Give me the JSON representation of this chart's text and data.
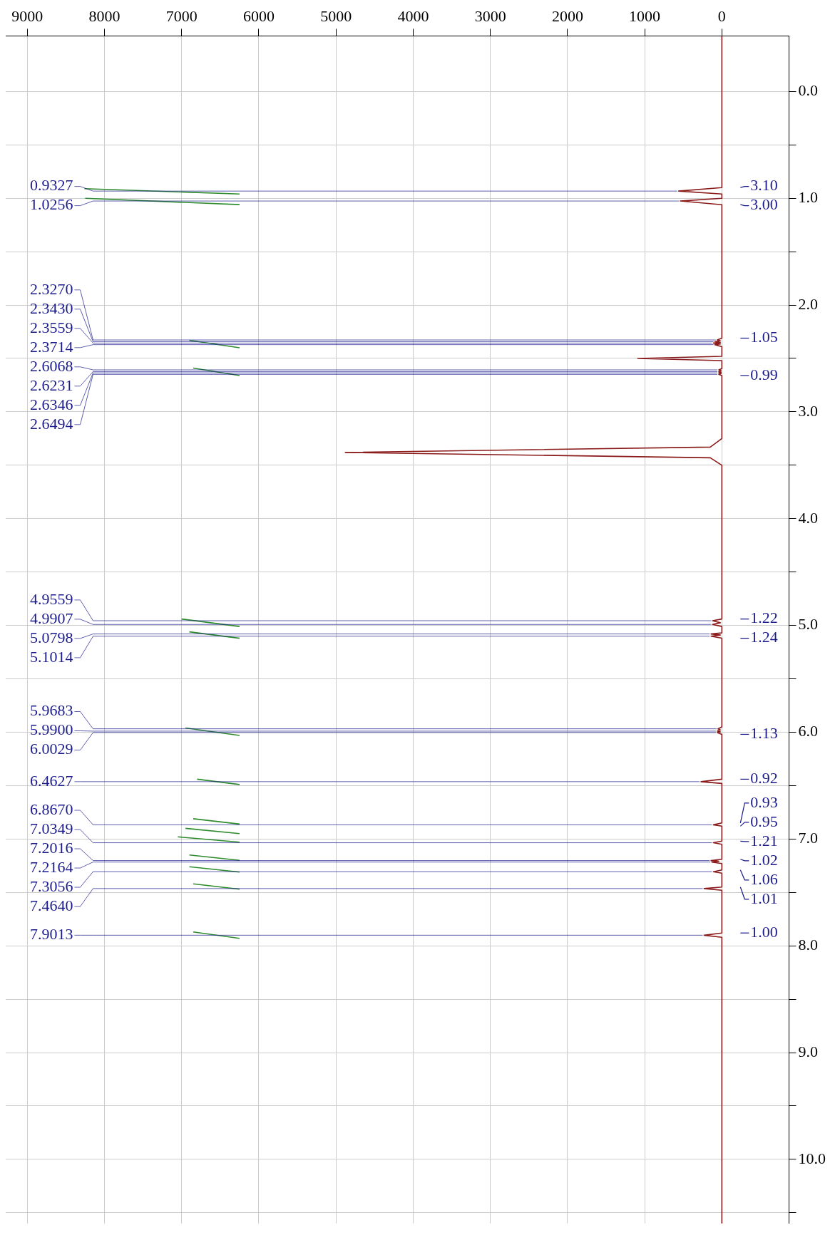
{
  "chart_data": {
    "type": "line",
    "orientation": "horizontal",
    "xlim": [
      9280,
      -870
    ],
    "xticks": [
      9000,
      8000,
      7000,
      6000,
      5000,
      4000,
      3000,
      2000,
      1000,
      0
    ],
    "ylim": [
      10.6,
      -0.52
    ],
    "yticks": [
      {
        "value": 0,
        "label": "0.0"
      },
      {
        "value": 0.5,
        "label": null
      },
      {
        "value": 1,
        "label": "1.0"
      },
      {
        "value": 1.5,
        "label": null
      },
      {
        "value": 2,
        "label": "2.0"
      },
      {
        "value": 2.5,
        "label": null
      },
      {
        "value": 3,
        "label": "3.0"
      },
      {
        "value": 3.5,
        "label": null
      },
      {
        "value": 4,
        "label": "4.0"
      },
      {
        "value": 4.5,
        "label": null
      },
      {
        "value": 5,
        "label": "5.0"
      },
      {
        "value": 5.5,
        "label": null
      },
      {
        "value": 6,
        "label": "6.0"
      },
      {
        "value": 6.5,
        "label": null
      },
      {
        "value": 7,
        "label": "7.0"
      },
      {
        "value": 7.5,
        "label": null
      },
      {
        "value": 8,
        "label": "8.0"
      },
      {
        "value": 8.5,
        "label": null
      },
      {
        "value": 9,
        "label": "9.0"
      },
      {
        "value": 9.5,
        "label": null
      },
      {
        "value": 10,
        "label": "10.0"
      },
      {
        "value": 10.5,
        "label": null
      }
    ],
    "grid": true,
    "legend": false,
    "marker": "none",
    "line_style": "solid",
    "series": [
      {
        "color": "#8b1a1a",
        "x": [
          -0.52,
          0.9,
          0.933,
          0.96,
          1.0,
          1.026,
          1.06,
          2.31,
          2.327,
          2.335,
          2.343,
          2.35,
          2.356,
          2.364,
          2.371,
          2.39,
          2.48,
          2.5,
          2.52,
          2.595,
          2.607,
          2.615,
          2.623,
          2.629,
          2.635,
          2.642,
          2.649,
          2.66,
          3.25,
          3.33,
          3.38,
          3.43,
          3.5,
          4.94,
          4.956,
          4.975,
          4.991,
          5.01,
          5.07,
          5.08,
          5.09,
          5.101,
          5.12,
          5.95,
          5.968,
          5.979,
          5.99,
          5.997,
          6.003,
          6.02,
          6.44,
          6.463,
          6.48,
          6.85,
          6.867,
          6.88,
          7.02,
          7.035,
          7.05,
          7.19,
          7.202,
          7.209,
          7.216,
          7.23,
          7.29,
          7.306,
          7.32,
          7.45,
          7.464,
          7.48,
          7.88,
          7.901,
          7.92,
          10.6
        ],
        "values": [
          0,
          0,
          560,
          0,
          0,
          540,
          0,
          0,
          60,
          20,
          90,
          20,
          110,
          20,
          90,
          0,
          0,
          1090,
          0,
          0,
          40,
          10,
          40,
          10,
          40,
          10,
          40,
          0,
          0,
          150,
          4880,
          150,
          0,
          0,
          120,
          20,
          120,
          0,
          0,
          140,
          20,
          140,
          0,
          0,
          50,
          20,
          60,
          20,
          60,
          0,
          0,
          270,
          0,
          0,
          110,
          0,
          0,
          110,
          0,
          0,
          140,
          40,
          130,
          0,
          0,
          110,
          0,
          0,
          230,
          0,
          0,
          230,
          0,
          0
        ]
      },
      {
        "color": "#2e8b2e",
        "x": [
          0.96,
          0.91
        ],
        "values": [
          6250,
          8260
        ]
      },
      {
        "color": "#2e8b2e",
        "x": [
          1.06,
          1.0
        ],
        "values": [
          6250,
          8250
        ]
      },
      {
        "color": "#2e8b2e",
        "x": [
          2.4,
          2.33
        ],
        "values": [
          6250,
          6900
        ]
      },
      {
        "color": "#2e8b2e",
        "x": [
          2.66,
          2.59
        ],
        "values": [
          6250,
          6850
        ]
      },
      {
        "color": "#2e8b2e",
        "x": [
          5.01,
          4.94
        ],
        "values": [
          6250,
          7000
        ]
      },
      {
        "color": "#2e8b2e",
        "x": [
          5.12,
          5.06
        ],
        "values": [
          6250,
          6900
        ]
      },
      {
        "color": "#2e8b2e",
        "x": [
          6.03,
          5.96
        ],
        "values": [
          6250,
          6950
        ]
      },
      {
        "color": "#2e8b2e",
        "x": [
          6.49,
          6.44
        ],
        "values": [
          6250,
          6800
        ]
      },
      {
        "color": "#2e8b2e",
        "x": [
          6.86,
          6.81
        ],
        "values": [
          6250,
          6850
        ]
      },
      {
        "color": "#2e8b2e",
        "x": [
          6.95,
          6.9
        ],
        "values": [
          6250,
          6950
        ]
      },
      {
        "color": "#2e8b2e",
        "x": [
          7.03,
          6.98
        ],
        "values": [
          6250,
          7050
        ]
      },
      {
        "color": "#2e8b2e",
        "x": [
          7.2,
          7.15
        ],
        "values": [
          6250,
          6900
        ]
      },
      {
        "color": "#2e8b2e",
        "x": [
          7.31,
          7.26
        ],
        "values": [
          6250,
          6900
        ]
      },
      {
        "color": "#2e8b2e",
        "x": [
          7.47,
          7.42
        ],
        "values": [
          6250,
          6850
        ]
      },
      {
        "color": "#2e8b2e",
        "x": [
          7.93,
          7.87
        ],
        "values": [
          6250,
          6850
        ]
      }
    ],
    "annotations": [
      {
        "text": "0.9327",
        "x": 560,
        "y": 0.933
      },
      {
        "text": "1.0256",
        "x": 540,
        "y": 1.026
      },
      {
        "text": "2.3270",
        "x": 60,
        "y": 2.327
      },
      {
        "text": "2.3430",
        "x": 90,
        "y": 2.343
      },
      {
        "text": "2.3559",
        "x": 110,
        "y": 2.356
      },
      {
        "text": "2.3714",
        "x": 90,
        "y": 2.371
      },
      {
        "text": "2.6068",
        "x": 40,
        "y": 2.607
      },
      {
        "text": "2.6231",
        "x": 40,
        "y": 2.623
      },
      {
        "text": "2.6346",
        "x": 40,
        "y": 2.635
      },
      {
        "text": "2.6494",
        "x": 40,
        "y": 2.649
      },
      {
        "text": "4.9559",
        "x": 120,
        "y": 4.956
      },
      {
        "text": "4.9907",
        "x": 120,
        "y": 4.991
      },
      {
        "text": "5.0798",
        "x": 140,
        "y": 5.08
      },
      {
        "text": "5.1014",
        "x": 140,
        "y": 5.101
      },
      {
        "text": "5.9683",
        "x": 50,
        "y": 5.968
      },
      {
        "text": "5.9900",
        "x": 60,
        "y": 5.99
      },
      {
        "text": "6.0029",
        "x": 60,
        "y": 6.003
      },
      {
        "text": "6.4627",
        "x": 270,
        "y": 6.463
      },
      {
        "text": "6.8670",
        "x": 110,
        "y": 6.867
      },
      {
        "text": "7.0349",
        "x": 110,
        "y": 7.035
      },
      {
        "text": "7.2016",
        "x": 140,
        "y": 7.202
      },
      {
        "text": "7.2164",
        "x": 130,
        "y": 7.216
      },
      {
        "text": "7.3056",
        "x": 110,
        "y": 7.306
      },
      {
        "text": "7.4640",
        "x": 230,
        "y": 7.464
      },
      {
        "text": "7.9013",
        "x": 230,
        "y": 7.901
      },
      {
        "text": "3.10",
        "x": 0,
        "y": 0.9
      },
      {
        "text": "3.00",
        "x": 0,
        "y": 1.06
      },
      {
        "text": "1.05",
        "x": 0,
        "y": 2.31
      },
      {
        "text": "0.99",
        "x": 0,
        "y": 2.66
      },
      {
        "text": "1.22",
        "x": 0,
        "y": 4.94
      },
      {
        "text": "1.24",
        "x": 0,
        "y": 5.12
      },
      {
        "text": "1.13",
        "x": 0,
        "y": 6.02
      },
      {
        "text": "0.92",
        "x": 0,
        "y": 6.44
      },
      {
        "text": "0.93",
        "x": 0,
        "y": 6.85
      },
      {
        "text": "0.95",
        "x": 0,
        "y": 6.88
      },
      {
        "text": "1.21",
        "x": 0,
        "y": 7.02
      },
      {
        "text": "1.02",
        "x": 0,
        "y": 7.19
      },
      {
        "text": "1.06",
        "x": 0,
        "y": 7.29
      },
      {
        "text": "1.01",
        "x": 0,
        "y": 7.45
      },
      {
        "text": "1.00",
        "x": 0,
        "y": 7.88
      }
    ]
  }
}
